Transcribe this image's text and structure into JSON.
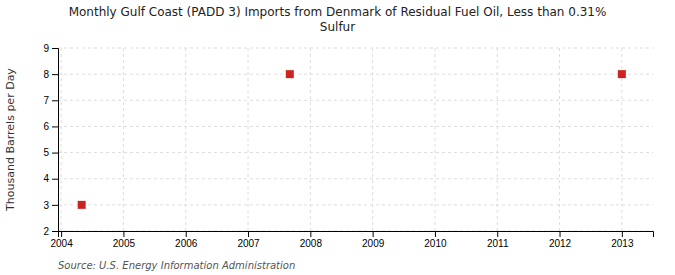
{
  "chart_data": {
    "type": "scatter",
    "title": "Monthly Gulf Coast (PADD 3) Imports from Denmark of Residual Fuel Oil, Less than 0.31%\nSulfur",
    "ylabel": "Thousand Barrels per Day",
    "source": "Source: U.S. Energy Information Administration",
    "x": [
      2004.33,
      2007.67,
      2013.0
    ],
    "values": [
      3,
      8,
      8
    ],
    "color": "#cc2222",
    "marker": "square",
    "xlim": [
      2003.95,
      2013.5
    ],
    "ylim": [
      2,
      9
    ],
    "xticks": [
      2004,
      2005,
      2006,
      2007,
      2008,
      2009,
      2010,
      2011,
      2012,
      2013
    ],
    "yticks": [
      2,
      3,
      4,
      5,
      6,
      7,
      8,
      9
    ],
    "grid": true
  }
}
